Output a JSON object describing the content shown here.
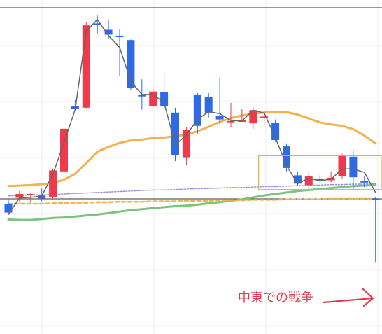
{
  "chart_data": {
    "type": "candlestick",
    "grid": true,
    "levels": {
      "top_line": 60.0,
      "mid_line": 21.0
    },
    "candles": [
      {
        "o": 19.9,
        "h": 20.9,
        "l": 17.9,
        "c": 18.2
      },
      {
        "o": 21.2,
        "h": 22.6,
        "l": 20.2,
        "c": 22.0
      },
      {
        "o": 21.8,
        "h": 22.3,
        "l": 20.2,
        "c": 22.0
      },
      {
        "o": 21.7,
        "h": 23.1,
        "l": 20.5,
        "c": 21.1
      },
      {
        "o": 21.3,
        "h": 27.2,
        "l": 20.8,
        "c": 26.8
      },
      {
        "o": 26.6,
        "h": 36.4,
        "l": 26.3,
        "c": 35.3
      },
      {
        "o": 40.0,
        "h": 41.2,
        "l": 39.0,
        "c": 39.4
      },
      {
        "o": 39.6,
        "h": 57.0,
        "l": 39.5,
        "c": 56.4
      },
      {
        "o": 56.8,
        "h": 58.4,
        "l": 54.7,
        "c": 56.5
      },
      {
        "o": 55.5,
        "h": 57.6,
        "l": 53.6,
        "c": 54.5
      },
      {
        "o": 54.3,
        "h": 55.6,
        "l": 46.0,
        "c": 54.0
      },
      {
        "o": 53.4,
        "h": 53.5,
        "l": 43.2,
        "c": 43.6
      },
      {
        "o": 42.3,
        "h": 45.4,
        "l": 39.2,
        "c": 41.9
      },
      {
        "o": 40.0,
        "h": 43.8,
        "l": 39.8,
        "c": 42.9
      },
      {
        "o": 42.8,
        "h": 46.5,
        "l": 39.4,
        "c": 40.0
      },
      {
        "o": 38.6,
        "h": 39.6,
        "l": 28.7,
        "c": 29.9
      },
      {
        "o": 29.5,
        "h": 35.6,
        "l": 28.0,
        "c": 35.0
      },
      {
        "o": 42.3,
        "h": 42.6,
        "l": 34.3,
        "c": 35.9
      },
      {
        "o": 41.8,
        "h": 42.6,
        "l": 37.6,
        "c": 38.6
      },
      {
        "o": 38.0,
        "h": 45.7,
        "l": 36.2,
        "c": 37.2
      },
      {
        "o": 36.8,
        "h": 40.6,
        "l": 35.6,
        "c": 36.9
      },
      {
        "o": 36.8,
        "h": 39.3,
        "l": 36.7,
        "c": 37.0
      },
      {
        "o": 36.4,
        "h": 39.7,
        "l": 35.3,
        "c": 39.1
      },
      {
        "o": 37.5,
        "h": 39.0,
        "l": 36.2,
        "c": 37.8
      },
      {
        "o": 36.5,
        "h": 37.2,
        "l": 32.6,
        "c": 33.0
      },
      {
        "o": 31.7,
        "h": 32.3,
        "l": 26.6,
        "c": 27.3
      },
      {
        "o": 25.8,
        "h": 26.6,
        "l": 23.6,
        "c": 24.1
      },
      {
        "o": 23.8,
        "h": 26.4,
        "l": 22.9,
        "c": 25.7
      },
      {
        "o": 25.1,
        "h": 25.8,
        "l": 24.5,
        "c": 25.0
      },
      {
        "o": 24.8,
        "h": 26.6,
        "l": 24.4,
        "c": 25.3
      },
      {
        "o": 25.6,
        "h": 30.2,
        "l": 25.0,
        "c": 29.9
      },
      {
        "o": 29.6,
        "h": 30.9,
        "l": 23.0,
        "c": 25.4
      },
      {
        "o": 24.6,
        "h": 25.6,
        "l": 23.4,
        "c": 24.5
      },
      {
        "o": 21.1,
        "h": 21.4,
        "l": 8.1,
        "c": 20.8
      }
    ],
    "close_line": [
      17.8,
      21.2,
      21.3,
      21.6,
      26.0,
      32.5,
      39.2,
      55.2,
      57.6,
      54.3,
      51.9,
      45.0,
      42.3,
      42.3,
      40.6,
      32.0,
      34.0,
      37.2,
      38.8,
      38.4,
      37.0,
      36.9,
      39.1,
      38.5,
      33.5,
      27.8,
      24.1,
      25.2,
      24.7,
      25.0,
      27.1,
      27.1,
      26.4,
      22.3
    ],
    "ma_orange": [
      23.6,
      23.7,
      23.8,
      24.0,
      24.2,
      24.9,
      26.1,
      28.3,
      30.6,
      31.6,
      32.4,
      32.9,
      33.1,
      33.4,
      33.5,
      33.8,
      34.1,
      34.8,
      35.7,
      36.7,
      37.5,
      38.0,
      38.4,
      38.6,
      38.8,
      38.7,
      38.2,
      37.4,
      36.6,
      36.2,
      35.9,
      35.2,
      33.9,
      32.3
    ],
    "ma_green": [
      16.8,
      16.7,
      16.7,
      16.9,
      17.1,
      17.2,
      17.4,
      17.6,
      17.8,
      18.1,
      18.4,
      18.7,
      18.9,
      19.1,
      19.3,
      19.5,
      19.6,
      19.8,
      20.1,
      20.3,
      20.6,
      20.9,
      21.3,
      21.7,
      22.0,
      22.3,
      22.6,
      22.8,
      23.0,
      23.2,
      23.4,
      23.6,
      23.7,
      23.8
    ],
    "ma_orange_dashed": [
      20.0,
      20.0,
      20.0,
      20.0,
      20.1,
      20.1,
      20.2,
      20.2,
      20.3,
      20.3,
      20.4,
      20.4,
      20.4,
      20.5,
      20.5,
      20.5,
      20.6,
      20.6,
      20.6,
      20.7,
      20.7,
      20.7,
      20.8,
      20.8,
      20.8,
      20.9,
      20.9,
      20.9,
      20.9,
      21.0,
      21.0,
      21.0,
      21.0,
      21.0
    ],
    "ma_purple_dotted": [
      21.6,
      21.7,
      21.8,
      21.8,
      21.9,
      22.0,
      22.1,
      22.2,
      22.3,
      22.4,
      22.5,
      22.6,
      22.7,
      22.8,
      22.8,
      22.9,
      23.0,
      23.1,
      23.1,
      23.2,
      23.3,
      23.3,
      23.4,
      23.5,
      23.5,
      23.6,
      23.7,
      23.7,
      23.8,
      23.9,
      23.9,
      24.0,
      24.0,
      24.1
    ],
    "range_box": {
      "from_candle": 23,
      "to_candle": 33,
      "top": 29.8,
      "bottom": 22.9
    },
    "annotation": {
      "text": "中東での戦争"
    },
    "colors": {
      "up": "#f0394b",
      "down": "#2d6be6",
      "close_line": "#666666",
      "ma_orange": "#f5b14c",
      "ma_green": "#7ac47b",
      "ma_purple": "#9b8fd6",
      "box": "#e0b040",
      "annotation": "#e83a4f",
      "hline": "#333333",
      "grid": "#eeeeee"
    }
  }
}
